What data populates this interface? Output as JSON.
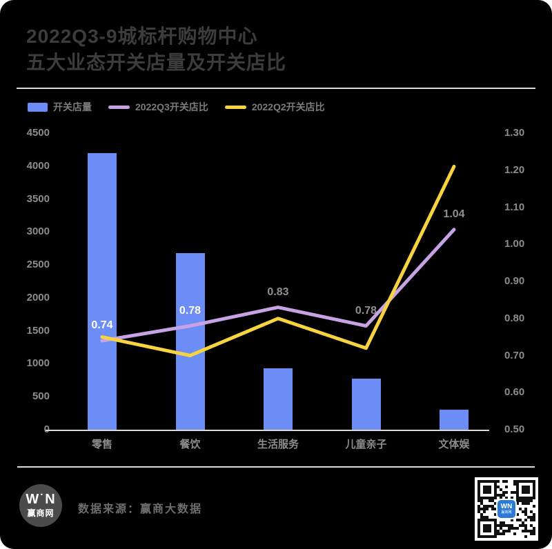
{
  "header": {
    "title_line1": "2022Q3-9城标杆购物中心",
    "title_line2": "五大业态开关店量及开关店比"
  },
  "legend": [
    {
      "label": "开关店量",
      "type": "bar",
      "color": "#6d8df6"
    },
    {
      "label": "2022Q3开关店比",
      "type": "line",
      "color": "#c7a3e6"
    },
    {
      "label": "2022Q2开关店比",
      "type": "line",
      "color": "#f6d33f"
    }
  ],
  "chart_data": {
    "type": "bar+line combo",
    "categories": [
      "零售",
      "餐饮",
      "生活服务",
      "儿童亲子",
      "文体娱"
    ],
    "bar_series": {
      "name": "开关店量",
      "axis": "left",
      "color": "#6d8df6",
      "values": [
        4200,
        2680,
        930,
        775,
        300
      ]
    },
    "line_series": [
      {
        "name": "2022Q3开关店比",
        "axis": "right",
        "color": "#c7a3e6",
        "values": [
          0.74,
          0.78,
          0.83,
          0.78,
          1.04
        ],
        "labels": [
          {
            "text": "0.74",
            "color": "#ffffff"
          },
          {
            "text": "0.78",
            "color": "#ffffff"
          },
          {
            "text": "0.83",
            "color": "#8f8f8f"
          },
          {
            "text": "0.78",
            "color": "#8f8f8f"
          },
          {
            "text": "1.04",
            "color": "#8f8f8f"
          }
        ]
      },
      {
        "name": "2022Q2开关店比",
        "axis": "right",
        "color": "#f6d33f",
        "values": [
          0.75,
          0.7,
          0.8,
          0.72,
          1.21
        ],
        "labels": [
          null,
          null,
          null,
          null,
          null
        ]
      }
    ],
    "left_axis": {
      "min": 0,
      "max": 4500,
      "ticks": [
        0,
        500,
        1000,
        1500,
        2000,
        2500,
        3000,
        3500,
        4000,
        4500
      ]
    },
    "right_axis": {
      "min": 0.5,
      "max": 1.3,
      "ticks": [
        "0.50",
        "0.60",
        "0.70",
        "0.80",
        "0.90",
        "1.00",
        "1.10",
        "1.20",
        "1.30"
      ]
    },
    "grid": "off",
    "legend_position": "top-left",
    "background": "#000000"
  },
  "footer": {
    "logo": {
      "w": "W",
      "dot": "·",
      "n": "N",
      "site": "赢商网"
    },
    "source_label": "数据来源：赢商大数据"
  }
}
